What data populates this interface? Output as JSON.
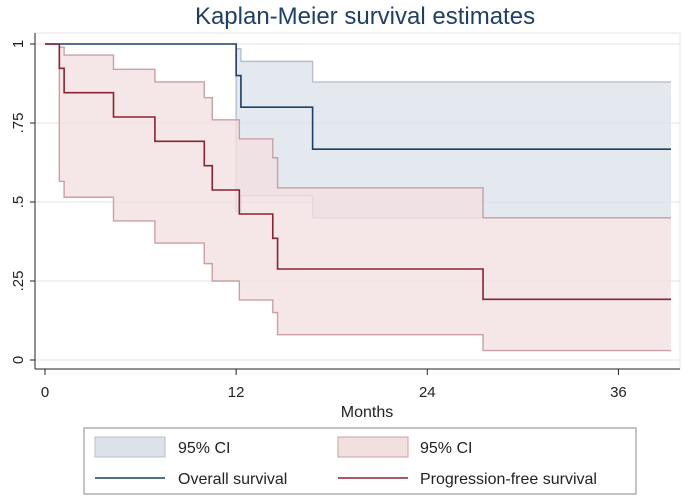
{
  "chart_data": {
    "type": "line",
    "title": "Kaplan-Meier survival estimates",
    "xlabel": "Months",
    "ylabel": "",
    "xlim": [
      0,
      39.3
    ],
    "ylim": [
      0,
      1
    ],
    "x_ticks": [
      0,
      12,
      24,
      36
    ],
    "x_tick_labels": [
      "0",
      "12",
      "24",
      "36"
    ],
    "y_ticks": [
      0,
      0.25,
      0.5,
      0.75,
      1
    ],
    "y_tick_labels": [
      "0",
      ".25",
      ".5",
      ".75",
      "1"
    ],
    "grid": true,
    "legend": {
      "placement": "bottom",
      "entries": [
        "95% CI",
        "95% CI",
        "Overall survival",
        "Progression-free survival"
      ]
    },
    "series": [
      {
        "name": "Overall survival",
        "kind": "step",
        "color": "#1f3e68",
        "x": [
          0,
          12.0,
          12.3,
          16.8,
          39.3
        ],
        "y": [
          1.0,
          0.9,
          0.8,
          0.667,
          0.667
        ]
      },
      {
        "name": "Progression-free survival",
        "kind": "step",
        "color": "#8b2231",
        "x": [
          0,
          0.9,
          1.2,
          4.3,
          6.9,
          10.0,
          10.5,
          12.2,
          14.3,
          14.6,
          27.5,
          39.3
        ],
        "y": [
          1.0,
          0.923,
          0.846,
          0.769,
          0.692,
          0.615,
          0.538,
          0.462,
          0.385,
          0.288,
          0.192,
          0.192
        ]
      }
    ],
    "ci_bands": [
      {
        "name": "95% CI",
        "for": "Overall survival",
        "color": "#dde2ea",
        "edge": "#b8bfcb",
        "x": [
          12.0,
          12.3,
          16.8,
          39.3
        ],
        "lower": [
          0.47,
          0.52,
          0.45,
          0.45
        ],
        "upper": [
          0.985,
          0.945,
          0.88,
          0.88
        ]
      },
      {
        "name": "95% CI",
        "for": "Progression-free survival",
        "color": "#f2dfe0",
        "edge": "#caa0a4",
        "x": [
          0.9,
          1.2,
          4.3,
          6.9,
          10.0,
          10.5,
          12.2,
          14.3,
          14.6,
          27.5,
          39.3
        ],
        "lower": [
          0.565,
          0.515,
          0.44,
          0.37,
          0.305,
          0.25,
          0.19,
          0.15,
          0.08,
          0.03,
          0.03
        ],
        "upper": [
          0.99,
          0.965,
          0.92,
          0.88,
          0.83,
          0.76,
          0.7,
          0.64,
          0.545,
          0.45,
          0.45
        ]
      }
    ]
  }
}
